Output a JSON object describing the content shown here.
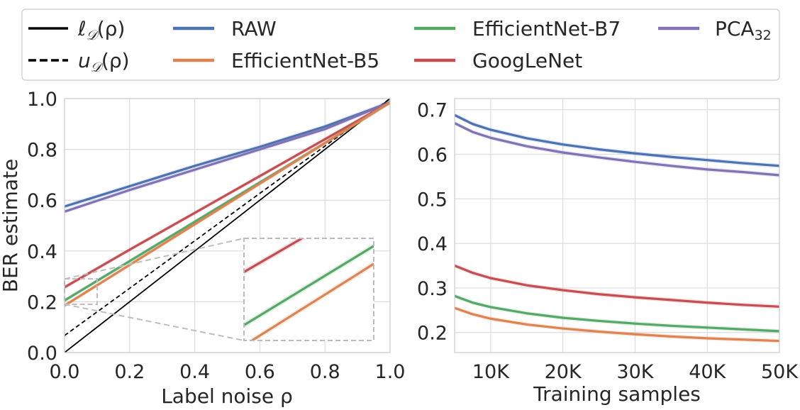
{
  "colors": {
    "raw": "#4c72b0",
    "b5": "#dd8452",
    "b7": "#55a868",
    "googlenet": "#c44e52",
    "pca": "#8172b3",
    "grid": "#dcdcdc",
    "zoom": "#bdbdbd",
    "axis": "#cccccc",
    "black": "#000000"
  },
  "legend": {
    "lower_bound_label": "ℓ",
    "lower_bound_sub": "𝒟",
    "lower_bound_arg": "(ρ)",
    "upper_bound_label": "u",
    "upper_bound_sub": "𝒟",
    "upper_bound_arg": "(ρ)",
    "raw": "RAW",
    "b5": "EfficientNet-B5",
    "b7": "EfficientNet-B7",
    "googlenet": "GoogLeNet",
    "pca": "PCA",
    "pca_sub": "32"
  },
  "chart_data": [
    {
      "type": "line",
      "title": "",
      "xlabel": "Label noise ρ",
      "ylabel": "BER estimate",
      "xlim": [
        0,
        1
      ],
      "ylim": [
        0,
        1
      ],
      "xticks": [
        0.0,
        0.2,
        0.4,
        0.6,
        0.8,
        1.0
      ],
      "yticks": [
        0.0,
        0.2,
        0.4,
        0.6,
        0.8,
        1.0
      ],
      "xtick_labels": [
        "0.0",
        "0.2",
        "0.4",
        "0.6",
        "0.8",
        "1.0"
      ],
      "ytick_labels": [
        "0.0",
        "0.2",
        "0.4",
        "0.6",
        "0.8",
        "1.0"
      ],
      "grid": true,
      "x": [
        0.0,
        0.2,
        0.4,
        0.6,
        0.8,
        1.0
      ],
      "series": [
        {
          "name": "RAW",
          "key": "raw",
          "values": [
            0.575,
            0.655,
            0.735,
            0.81,
            0.89,
            0.985
          ]
        },
        {
          "name": "PCA32",
          "key": "pca",
          "values": [
            0.555,
            0.64,
            0.72,
            0.8,
            0.88,
            0.985
          ]
        },
        {
          "name": "GoogLeNet",
          "key": "googlenet",
          "values": [
            0.257,
            0.405,
            0.55,
            0.695,
            0.84,
            0.985
          ]
        },
        {
          "name": "EfficientNet-B7",
          "key": "b7",
          "values": [
            0.205,
            0.36,
            0.515,
            0.67,
            0.825,
            0.985
          ]
        },
        {
          "name": "EfficientNet-B5",
          "key": "b5",
          "values": [
            0.185,
            0.345,
            0.505,
            0.665,
            0.825,
            0.985
          ]
        }
      ],
      "reference_lines": [
        {
          "name": "ℓ𝒟(ρ)",
          "style": "solid",
          "values": [
            0.0,
            0.2,
            0.4,
            0.6,
            0.8,
            1.0
          ]
        },
        {
          "name": "u𝒟(ρ)",
          "style": "dashed",
          "values": [
            0.067,
            0.253,
            0.44,
            0.627,
            0.813,
            1.0
          ]
        }
      ],
      "inset": {
        "x_range": [
          0.0,
          0.1
        ],
        "y_range": [
          0.19,
          0.29
        ]
      }
    },
    {
      "type": "line",
      "title": "",
      "xlabel": "Training samples",
      "ylabel": "",
      "xlim": [
        5000,
        50000
      ],
      "ylim": [
        0.155,
        0.725
      ],
      "xticks": [
        10000,
        20000,
        30000,
        40000,
        50000
      ],
      "xtick_labels": [
        "10K",
        "20K",
        "30K",
        "40K",
        "50K"
      ],
      "yticks": [
        0.2,
        0.3,
        0.4,
        0.5,
        0.6,
        0.7
      ],
      "ytick_labels": [
        "0.2",
        "0.3",
        "0.4",
        "0.5",
        "0.6",
        "0.7"
      ],
      "grid": true,
      "x": [
        5000,
        7500,
        10000,
        15000,
        20000,
        25000,
        30000,
        35000,
        40000,
        45000,
        50000
      ],
      "series": [
        {
          "name": "RAW",
          "key": "raw",
          "values": [
            0.688,
            0.668,
            0.655,
            0.636,
            0.622,
            0.611,
            0.602,
            0.594,
            0.587,
            0.58,
            0.574
          ]
        },
        {
          "name": "PCA32",
          "key": "pca",
          "values": [
            0.67,
            0.65,
            0.637,
            0.618,
            0.604,
            0.593,
            0.583,
            0.574,
            0.566,
            0.56,
            0.553
          ]
        },
        {
          "name": "GoogLeNet",
          "key": "googlenet",
          "values": [
            0.35,
            0.334,
            0.322,
            0.306,
            0.295,
            0.286,
            0.279,
            0.273,
            0.267,
            0.262,
            0.258
          ]
        },
        {
          "name": "EfficientNet-B7",
          "key": "b7",
          "values": [
            0.282,
            0.267,
            0.257,
            0.243,
            0.233,
            0.226,
            0.22,
            0.215,
            0.211,
            0.207,
            0.203
          ]
        },
        {
          "name": "EfficientNet-B5",
          "key": "b5",
          "values": [
            0.255,
            0.241,
            0.231,
            0.218,
            0.209,
            0.202,
            0.196,
            0.191,
            0.187,
            0.184,
            0.181
          ]
        }
      ]
    }
  ]
}
